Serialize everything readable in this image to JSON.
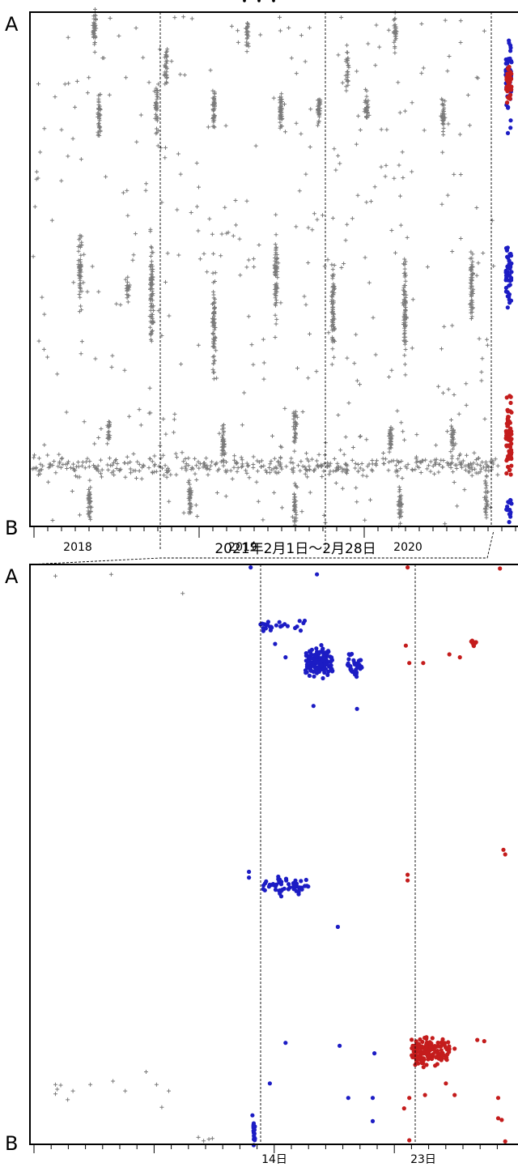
{
  "header_partial": "・・・",
  "chart_data": [
    {
      "type": "scatter",
      "panel": "top",
      "title": "",
      "end_labels": {
        "top": "A",
        "bottom": "B"
      },
      "x_tick_labels": [
        "2018",
        "2019",
        "2020"
      ],
      "dashed_year_separators": [
        "2019",
        "2020",
        "2021"
      ],
      "y_range": [
        0,
        1
      ],
      "series": [
        {
          "marker": "plus",
          "color": "#7a7a7a",
          "clusters": [
            {
              "x": 0.13,
              "y": 0.03,
              "h": 0.06,
              "n": 40
            },
            {
              "x": 0.28,
              "y": 0.1,
              "h": 0.08,
              "n": 30
            },
            {
              "x": 0.26,
              "y": 0.18,
              "h": 0.08,
              "n": 35
            },
            {
              "x": 0.14,
              "y": 0.2,
              "h": 0.06,
              "n": 40
            },
            {
              "x": 0.45,
              "y": 0.04,
              "h": 0.05,
              "n": 25
            },
            {
              "x": 0.38,
              "y": 0.19,
              "h": 0.07,
              "n": 45
            },
            {
              "x": 0.52,
              "y": 0.19,
              "h": 0.06,
              "n": 45
            },
            {
              "x": 0.6,
              "y": 0.19,
              "h": 0.06,
              "n": 35
            },
            {
              "x": 0.76,
              "y": 0.03,
              "h": 0.06,
              "n": 30
            },
            {
              "x": 0.66,
              "y": 0.11,
              "h": 0.07,
              "n": 25
            },
            {
              "x": 0.7,
              "y": 0.18,
              "h": 0.06,
              "n": 35
            },
            {
              "x": 0.86,
              "y": 0.2,
              "h": 0.06,
              "n": 35
            },
            {
              "x": 0.1,
              "y": 0.51,
              "h": 0.12,
              "n": 55
            },
            {
              "x": 0.25,
              "y": 0.55,
              "h": 0.18,
              "n": 80
            },
            {
              "x": 0.38,
              "y": 0.6,
              "h": 0.18,
              "n": 70
            },
            {
              "x": 0.51,
              "y": 0.51,
              "h": 0.15,
              "n": 70
            },
            {
              "x": 0.63,
              "y": 0.57,
              "h": 0.16,
              "n": 70
            },
            {
              "x": 0.78,
              "y": 0.58,
              "h": 0.16,
              "n": 70
            },
            {
              "x": 0.92,
              "y": 0.53,
              "h": 0.14,
              "n": 60
            },
            {
              "x": 0.2,
              "y": 0.54,
              "h": 0.04,
              "n": 20
            },
            {
              "x": 0.4,
              "y": 0.84,
              "h": 0.07,
              "n": 40
            },
            {
              "x": 0.55,
              "y": 0.81,
              "h": 0.06,
              "n": 35
            },
            {
              "x": 0.75,
              "y": 0.83,
              "h": 0.06,
              "n": 35
            },
            {
              "x": 0.88,
              "y": 0.83,
              "h": 0.06,
              "n": 30
            },
            {
              "x": 0.16,
              "y": 0.82,
              "h": 0.04,
              "n": 20
            },
            {
              "x": 0.12,
              "y": 0.95,
              "h": 0.07,
              "n": 40
            },
            {
              "x": 0.33,
              "y": 0.95,
              "h": 0.06,
              "n": 40
            },
            {
              "x": 0.55,
              "y": 0.96,
              "h": 0.06,
              "n": 35
            },
            {
              "x": 0.77,
              "y": 0.96,
              "h": 0.06,
              "n": 35
            },
            {
              "x": 0.95,
              "y": 0.95,
              "h": 0.07,
              "n": 30
            }
          ],
          "band": {
            "y": 0.885,
            "h": 0.035,
            "n": 420
          },
          "background": {
            "n": 380
          }
        },
        {
          "marker": "dot",
          "color": "#1c1cc4",
          "columns": [
            {
              "y": 0.12,
              "h": 0.13,
              "n": 60
            },
            {
              "y": 0.51,
              "h": 0.1,
              "n": 45
            },
            {
              "y": 0.97,
              "h": 0.04,
              "n": 15
            }
          ]
        },
        {
          "marker": "dot",
          "color": "#c41c1c",
          "columns": [
            {
              "y": 0.14,
              "h": 0.07,
              "n": 40
            },
            {
              "y": 0.83,
              "h": 0.12,
              "n": 70
            }
          ]
        }
      ]
    },
    {
      "type": "scatter",
      "panel": "bottom",
      "title": "2021年2月1日～2月28日",
      "end_labels": {
        "top": "A",
        "bottom": "B"
      },
      "x_tick_labels": [
        "14日",
        "23日"
      ],
      "x_range_days": [
        1,
        28
      ],
      "dashed_day_separators": [
        13.0,
        22.0
      ],
      "y_range": [
        0,
        1
      ],
      "series": [
        {
          "marker": "plus",
          "color": "#7a7a7a",
          "points": [
            [
              2.0,
              0.02
            ],
            [
              5.2,
              0.017
            ],
            [
              9.3,
              0.05
            ],
            [
              2.0,
              0.897
            ],
            [
              2.1,
              0.905
            ],
            [
              2.0,
              0.913
            ],
            [
              2.3,
              0.898
            ],
            [
              2.7,
              0.923
            ],
            [
              3.0,
              0.908
            ],
            [
              4.0,
              0.897
            ],
            [
              5.3,
              0.891
            ],
            [
              6.0,
              0.908
            ],
            [
              7.2,
              0.875
            ],
            [
              7.8,
              0.897
            ],
            [
              8.5,
              0.908
            ],
            [
              8.1,
              0.936
            ],
            [
              10.2,
              0.988
            ],
            [
              10.5,
              0.994
            ],
            [
              10.8,
              0.991
            ],
            [
              11.0,
              0.99
            ]
          ]
        },
        {
          "marker": "dot",
          "color": "#1c1cc4",
          "clusters": [
            {
              "x": 17.1,
              "y": 0.17,
              "w": 1.6,
              "h": 0.04,
              "n": 140
            },
            {
              "x": 19.2,
              "y": 0.172,
              "w": 0.9,
              "h": 0.035,
              "n": 40
            },
            {
              "x": 15.0,
              "y": 0.105,
              "w": 2.5,
              "h": 0.02,
              "n": 25
            },
            {
              "x": 15.2,
              "y": 0.555,
              "w": 2.6,
              "h": 0.025,
              "n": 55
            },
            {
              "x": 13.4,
              "y": 0.98,
              "w": 0.1,
              "h": 0.03,
              "n": 18
            }
          ],
          "points": [
            [
              13.2,
              0.005
            ],
            [
              17.0,
              0.017
            ],
            [
              16.3,
              0.097
            ],
            [
              14.6,
              0.137
            ],
            [
              15.2,
              0.16
            ],
            [
              16.8,
              0.244
            ],
            [
              19.3,
              0.249
            ],
            [
              13.1,
              0.53
            ],
            [
              13.1,
              0.54
            ],
            [
              18.2,
              0.625
            ],
            [
              15.2,
              0.825
            ],
            [
              14.3,
              0.895
            ],
            [
              18.3,
              0.83
            ],
            [
              20.3,
              0.843
            ],
            [
              18.8,
              0.92
            ],
            [
              20.2,
              0.92
            ],
            [
              20.2,
              0.96
            ],
            [
              13.3,
              0.95
            ]
          ]
        },
        {
          "marker": "dot",
          "color": "#c41c1c",
          "clusters": [
            {
              "x": 23.5,
              "y": 0.84,
              "w": 2.2,
              "h": 0.04,
              "n": 140
            },
            {
              "x": 26.0,
              "y": 0.135,
              "w": 0.3,
              "h": 0.015,
              "n": 8
            }
          ],
          "points": [
            [
              22.2,
              0.005
            ],
            [
              27.5,
              0.007
            ],
            [
              22.1,
              0.14
            ],
            [
              22.3,
              0.17
            ],
            [
              23.1,
              0.17
            ],
            [
              24.6,
              0.155
            ],
            [
              25.2,
              0.16
            ],
            [
              27.7,
              0.492
            ],
            [
              27.8,
              0.5
            ],
            [
              22.2,
              0.535
            ],
            [
              22.2,
              0.545
            ],
            [
              26.2,
              0.82
            ],
            [
              26.6,
              0.822
            ],
            [
              24.9,
              0.835
            ],
            [
              22.0,
              0.938
            ],
            [
              22.3,
              0.92
            ],
            [
              23.2,
              0.915
            ],
            [
              24.4,
              0.895
            ],
            [
              24.9,
              0.915
            ],
            [
              27.4,
              0.92
            ],
            [
              27.4,
              0.955
            ],
            [
              27.6,
              0.958
            ],
            [
              22.3,
              0.993
            ],
            [
              27.8,
              0.995
            ],
            [
              22.5,
              0.83
            ]
          ]
        }
      ]
    }
  ]
}
